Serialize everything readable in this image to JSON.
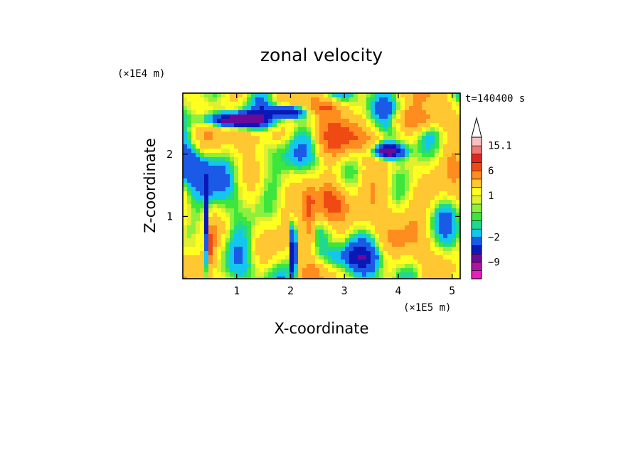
{
  "chart_data": {
    "type": "heatmap",
    "title": "zonal velocity",
    "xlabel": "X-coordinate",
    "ylabel": "Z-coordinate",
    "x_unit": "(×1E5 m)",
    "y_unit": "(×1E4 m)",
    "time_label": "t=140400 s",
    "xlim": [
      0,
      5.15
    ],
    "ylim": [
      0,
      2.98
    ],
    "x_ticks": [
      1,
      2,
      3,
      4,
      5
    ],
    "y_ticks": [
      1,
      2
    ],
    "x_tick_labels": [
      "1",
      "2",
      "3",
      "4",
      "5"
    ],
    "y_tick_labels": [
      "1",
      "2"
    ],
    "colorbar": {
      "levels": [
        -15,
        -12,
        -9,
        -6,
        -4,
        -2,
        -1,
        -0.5,
        0,
        0.5,
        1,
        2,
        4,
        6,
        9,
        12,
        15.1
      ],
      "labels": [
        "15.1",
        "6",
        "1",
        "−2",
        "−9"
      ],
      "label_values": [
        15.1,
        6,
        1,
        -2,
        -9
      ],
      "colors": [
        "#e81fbf",
        "#b0149f",
        "#6b0a9a",
        "#0a18b8",
        "#1a5ae6",
        "#12c6f0",
        "#20d890",
        "#3ce63c",
        "#8cf03c",
        "#e0f030",
        "#ffff20",
        "#ffc832",
        "#ff8c1e",
        "#f04a14",
        "#e0251e",
        "#f07878",
        "#f8c0c0"
      ],
      "extend": "max"
    }
  }
}
